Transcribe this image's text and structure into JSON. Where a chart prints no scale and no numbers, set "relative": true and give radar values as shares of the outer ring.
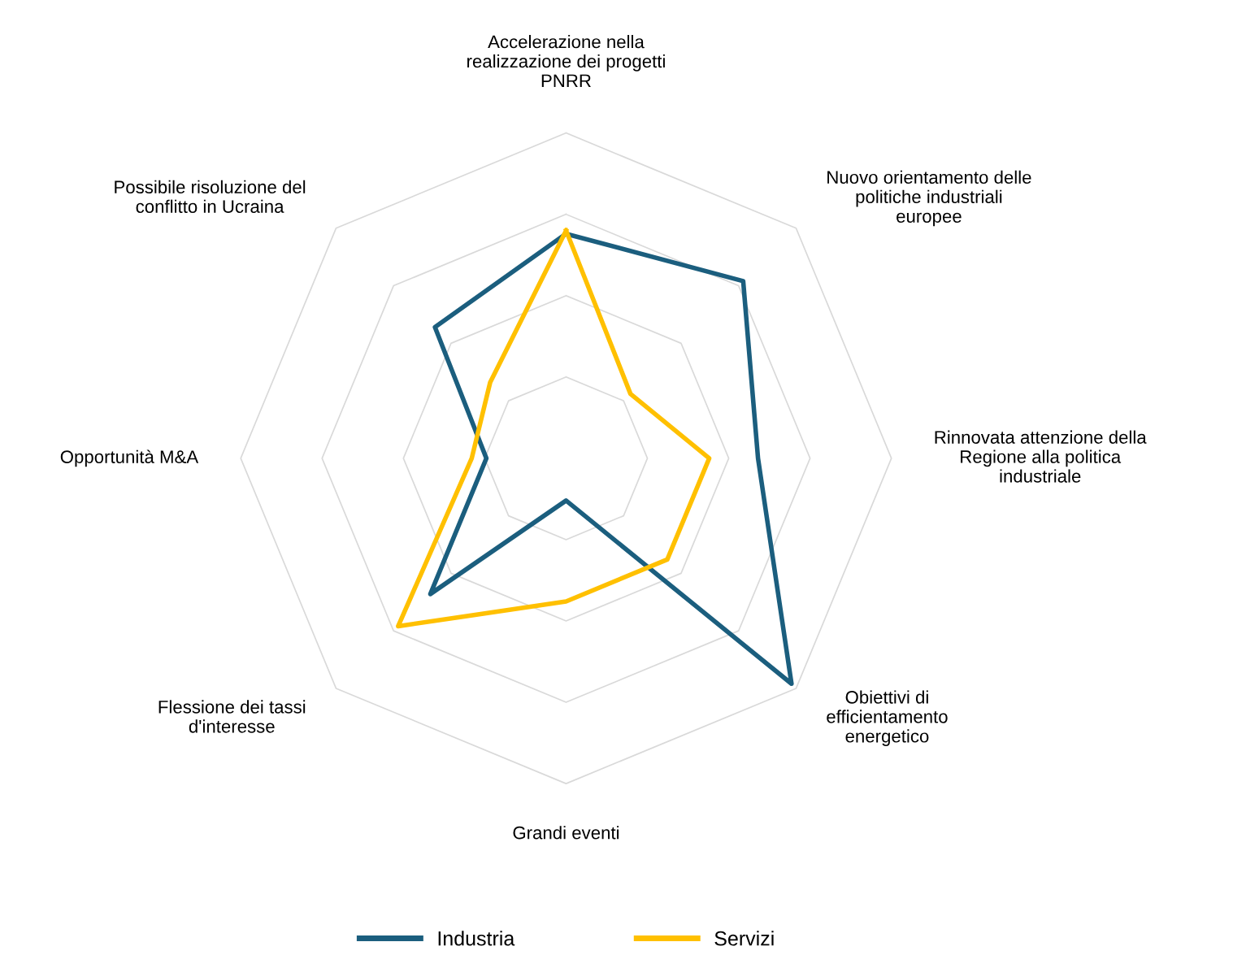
{
  "chart_data": {
    "type": "radar",
    "relative": true,
    "grid": true,
    "legend": "bottom",
    "marker": "none",
    "line_style": "solid",
    "categories": [
      "Accelerazione nella\nrealizzazione dei progetti\nPNRR",
      "Nuovo orientamento delle\npolitiche industriali\neuropee",
      "Rinnovata attenzione della\nRegione alla politica\nindustriale",
      "Obiettivi di\nefficientamento\nenergetico",
      "Grandi eventi",
      "Flessione dei tassi\nd'interesse",
      "Opportunità M&A",
      "Possibile risoluzione del\nconflitto in Ucraina"
    ],
    "series": [
      {
        "name": "Industria",
        "color": "#1b5e7e",
        "values": [
          0.69,
          0.77,
          0.59,
          0.98,
          0.13,
          0.59,
          0.245,
          0.57
        ]
      },
      {
        "name": "Servizi",
        "color": "#ffc000",
        "values": [
          0.7,
          0.28,
          0.44,
          0.44,
          0.44,
          0.73,
          0.29,
          0.33
        ]
      }
    ]
  }
}
